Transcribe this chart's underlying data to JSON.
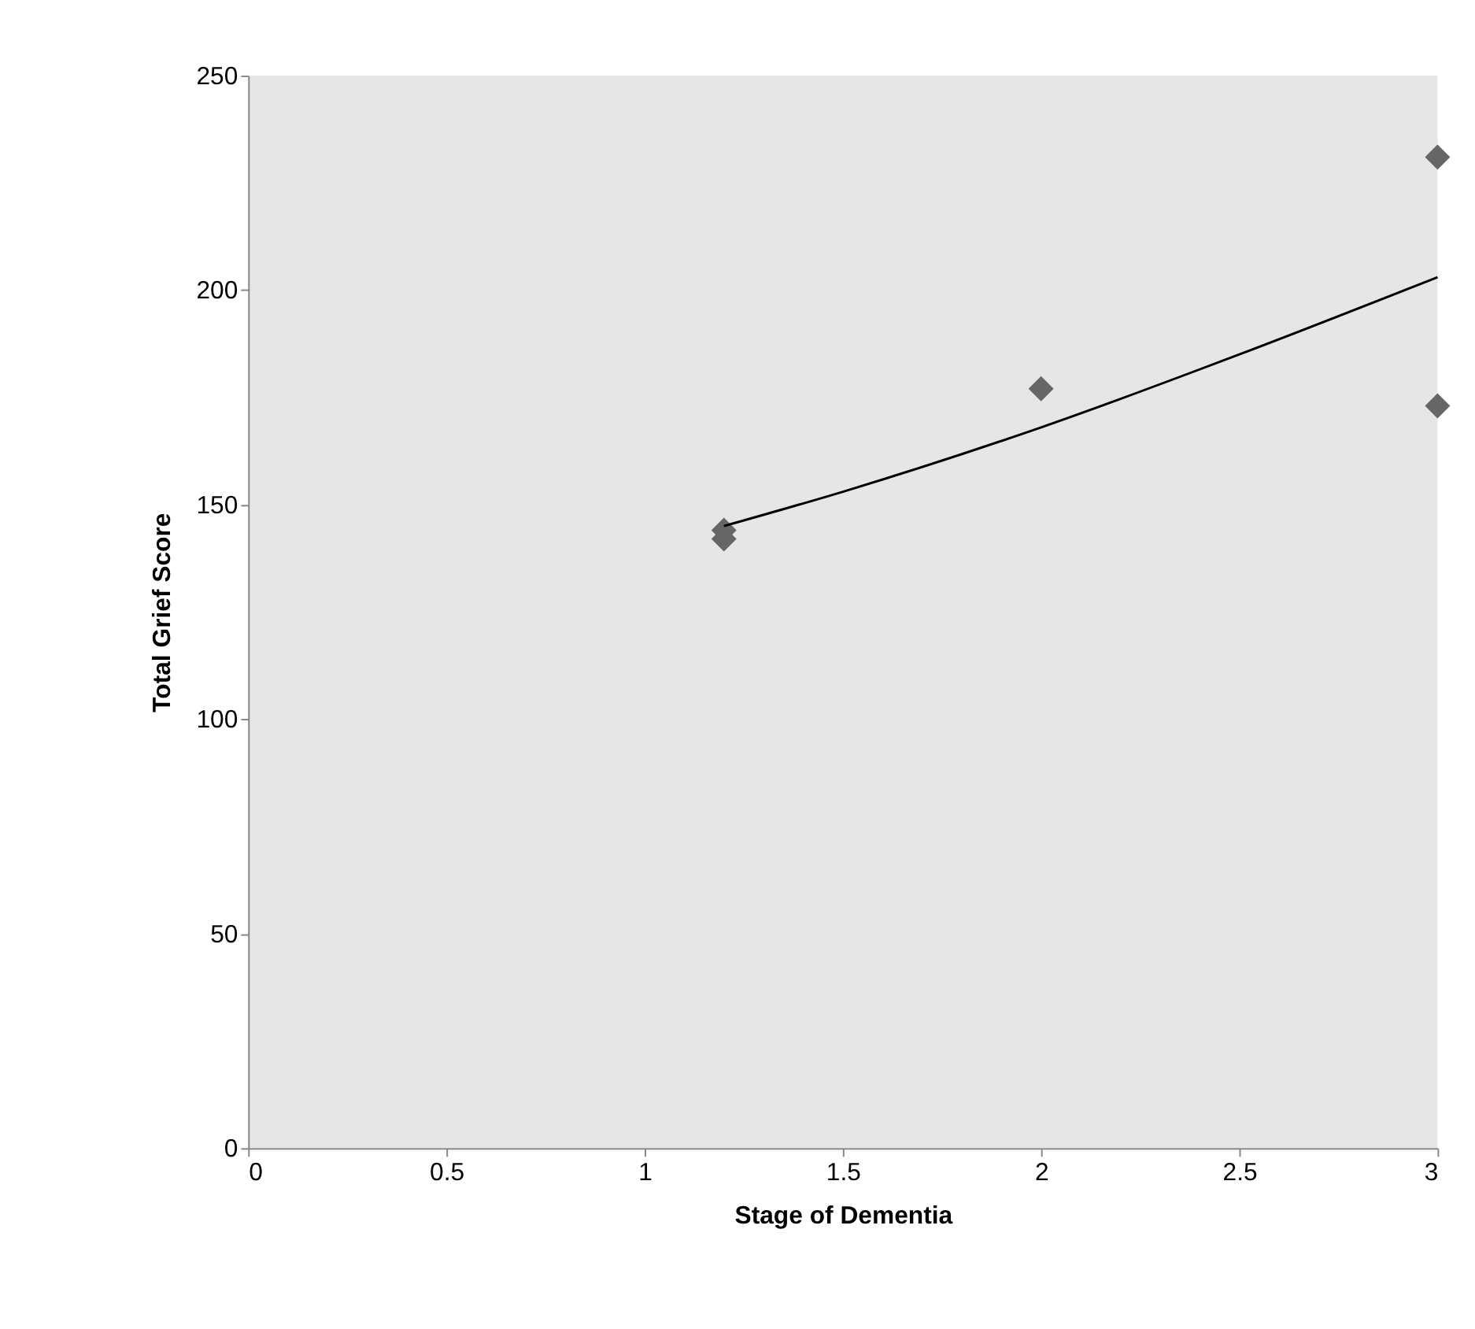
{
  "chart_data": {
    "type": "scatter",
    "xlabel": "Stage of Dementia",
    "ylabel": "Total Grief Score",
    "series": [
      {
        "color": "#666666",
        "marker": "diamond",
        "x": [
          1.2,
          1.2,
          2,
          3,
          3
        ],
        "values": [
          144,
          142,
          177,
          231,
          173
        ]
      },
      {
        "type": "line",
        "color": "#000000",
        "marker": "none",
        "line_style": "solid",
        "x": [
          1.2,
          1.5,
          2,
          2.5,
          3
        ],
        "values": [
          145,
          153,
          168,
          185,
          203
        ]
      }
    ],
    "xlim": [
      0,
      3
    ],
    "xticks": [
      0,
      0.5,
      1,
      1.5,
      2,
      2.5,
      3
    ],
    "ylim": [
      0,
      250
    ],
    "yticks": [
      0,
      50,
      100,
      150,
      200,
      250
    ],
    "grid": false,
    "legend": false
  }
}
